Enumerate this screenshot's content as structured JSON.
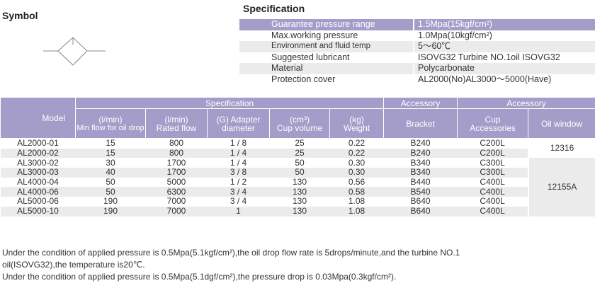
{
  "symbol_title": "Symbol",
  "specification": {
    "title": "Specification",
    "rows": [
      {
        "label": "Guarantee pressure range",
        "value": "1.5Mpa(15kgf/cm²)"
      },
      {
        "label": "Max.working pressure",
        "value": "1.0Mpa(10kgf/cm²)"
      },
      {
        "label": "Environment and fluid temp",
        "value": "5～60℃"
      },
      {
        "label": "Suggested lubricant",
        "value": "ISOVG32 Turbine NO.1oil ISOVG32"
      },
      {
        "label": "Material",
        "value": "Polycarbonate"
      },
      {
        "label": "Protection cover",
        "value": "AL2000(No)AL3000～5000(Have)"
      }
    ]
  },
  "table": {
    "group_headers": {
      "model": "Model",
      "specification": "Specification",
      "accessory1": "Accessory",
      "accessory2": "Accessory"
    },
    "columns": [
      {
        "unit": "(l/min)",
        "label": "Min flow for oil drop"
      },
      {
        "unit": "(l/min)",
        "label": "Rated flow"
      },
      {
        "unit": "(G) Adapter",
        "label": "diameter"
      },
      {
        "unit": "(cm³)",
        "label": "Cup volume"
      },
      {
        "unit": "(kg)",
        "label": "Weight"
      },
      {
        "unit": "",
        "label": "Bracket"
      },
      {
        "unit": "Cup",
        "label": "Accessories"
      },
      {
        "unit": "",
        "label": "Oil window"
      }
    ],
    "rows": [
      [
        "AL2000-01",
        "15",
        "800",
        "1 / 8",
        "25",
        "0.22",
        "B240",
        "C200L"
      ],
      [
        "AL2000-02",
        "15",
        "800",
        "1 / 4",
        "25",
        "0.22",
        "B240",
        "C200L"
      ],
      [
        "AL3000-02",
        "30",
        "1700",
        "1 / 4",
        "50",
        "0.30",
        "B340",
        "C300L"
      ],
      [
        "AL3000-03",
        "40",
        "1700",
        "3 / 8",
        "50",
        "0.30",
        "B340",
        "C300L"
      ],
      [
        "AL4000-04",
        "50",
        "5000",
        "1 / 2",
        "130",
        "0.56",
        "B440",
        "C400L"
      ],
      [
        "AL4000-06",
        "50",
        "6300",
        "3 / 4",
        "130",
        "0.58",
        "B540",
        "C400L"
      ],
      [
        "AL5000-06",
        "190",
        "7000",
        "3 / 4",
        "130",
        "1.08",
        "B640",
        "C400L"
      ],
      [
        "AL5000-10",
        "190",
        "7000",
        "1",
        "130",
        "1.08",
        "B640",
        "C400L"
      ]
    ],
    "oil_window": [
      "12316",
      "12155A"
    ]
  },
  "notes": [
    "Under the condition of applied pressure is 0.5Mpa(5.1kgf/cm²),the oil drop flow rate is 5drops/minute,and the turbine NO.1 oil(ISOVG32),the temperature is20℃.",
    "Under the condition of applied pressure is 0.5Mpa(5.1dgf/cm²),the pressure drop is 0.03Mpa(0.3kgf/cm²)."
  ]
}
